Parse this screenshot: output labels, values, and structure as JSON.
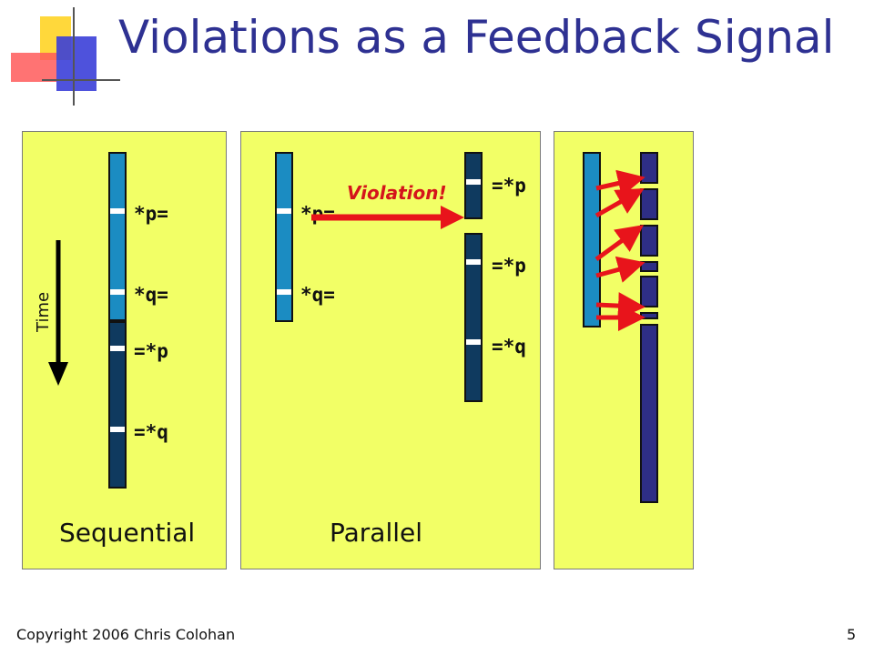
{
  "slide": {
    "title": "Violations as a Feedback Signal",
    "footer_left": "Copyright 2006 Chris Colohan",
    "page_number": "5"
  },
  "sequential": {
    "time_label": "Time",
    "ops": [
      "*p=",
      "*q=",
      "=*p",
      "=*q"
    ],
    "caption": "Sequential"
  },
  "parallel": {
    "left_ops": [
      "*p=",
      "*q="
    ],
    "violation_label": "Violation!",
    "right_ops": [
      "=*p",
      "=*p",
      "=*q"
    ],
    "caption": "Parallel"
  },
  "colors": {
    "title": "#2e3192",
    "panel_background": "#f2ff66",
    "thread_light": "#1b8cc2",
    "thread_dark": "#0f3a5f",
    "thread_navy": "#2e2e85",
    "violation_arrow": "#e8141b",
    "violation_text": "#d4141b"
  }
}
